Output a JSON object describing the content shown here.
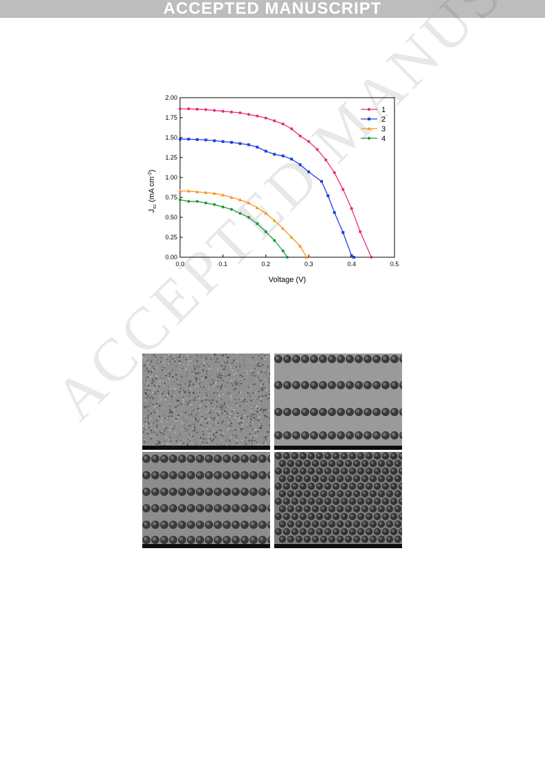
{
  "banner": {
    "text": "ACCEPTED MANUSCRIPT"
  },
  "watermark": {
    "text": "ACCEPTED MANUSCRIPT"
  },
  "chart_data": {
    "type": "line",
    "xlabel": "Voltage (V)",
    "ylabel_main": "J",
    "ylabel_sub": "sc",
    "ylabel_rest": " (mA cm",
    "ylabel_sup": "-2",
    "ylabel_close": ")",
    "xlim": [
      0,
      0.5
    ],
    "ylim": [
      0,
      2.0
    ],
    "xticks": [
      "0.0",
      "0.1",
      "0.2",
      "0.3",
      "0.4",
      "0.5"
    ],
    "yticks": [
      "0.00",
      "0.25",
      "0.50",
      "0.75",
      "1.00",
      "1.25",
      "1.50",
      "1.75",
      "2.00"
    ],
    "legend_position": "top-right",
    "series": [
      {
        "name": "1",
        "color": "#e8287c",
        "marker": "circle",
        "x": [
          0,
          0.02,
          0.04,
          0.06,
          0.08,
          0.1,
          0.12,
          0.14,
          0.16,
          0.18,
          0.2,
          0.22,
          0.24,
          0.26,
          0.28,
          0.3,
          0.32,
          0.34,
          0.36,
          0.38,
          0.4,
          0.42,
          0.446
        ],
        "y": [
          1.86,
          1.86,
          1.855,
          1.85,
          1.84,
          1.83,
          1.82,
          1.81,
          1.79,
          1.77,
          1.745,
          1.71,
          1.67,
          1.61,
          1.52,
          1.45,
          1.35,
          1.22,
          1.06,
          0.85,
          0.61,
          0.32,
          0.0
        ]
      },
      {
        "name": "2",
        "color": "#1f3fe0",
        "marker": "square",
        "x": [
          0,
          0.02,
          0.04,
          0.06,
          0.08,
          0.1,
          0.12,
          0.14,
          0.16,
          0.18,
          0.2,
          0.22,
          0.24,
          0.26,
          0.28,
          0.3,
          0.33,
          0.345,
          0.36,
          0.38,
          0.4,
          0.405
        ],
        "y": [
          1.48,
          1.48,
          1.475,
          1.47,
          1.46,
          1.45,
          1.44,
          1.425,
          1.41,
          1.38,
          1.33,
          1.29,
          1.27,
          1.23,
          1.16,
          1.07,
          0.95,
          0.77,
          0.56,
          0.31,
          0.02,
          0.0
        ]
      },
      {
        "name": "3",
        "color": "#f7941d",
        "marker": "triangle",
        "x": [
          0,
          0.02,
          0.04,
          0.06,
          0.08,
          0.1,
          0.12,
          0.14,
          0.16,
          0.18,
          0.2,
          0.22,
          0.24,
          0.26,
          0.28,
          0.295
        ],
        "y": [
          0.83,
          0.83,
          0.82,
          0.81,
          0.8,
          0.78,
          0.75,
          0.72,
          0.68,
          0.62,
          0.55,
          0.46,
          0.36,
          0.25,
          0.14,
          0.0
        ]
      },
      {
        "name": "4",
        "color": "#1e9a3a",
        "marker": "circle",
        "x": [
          0,
          0.02,
          0.04,
          0.06,
          0.08,
          0.1,
          0.12,
          0.14,
          0.16,
          0.18,
          0.2,
          0.22,
          0.24,
          0.25
        ],
        "y": [
          0.72,
          0.7,
          0.7,
          0.68,
          0.66,
          0.63,
          0.6,
          0.55,
          0.5,
          0.42,
          0.32,
          0.21,
          0.08,
          0.0
        ]
      }
    ]
  },
  "sem_panels": [
    {
      "pattern": "rough"
    },
    {
      "pattern": "two-rows"
    },
    {
      "pattern": "three-rows"
    },
    {
      "pattern": "close-packed"
    }
  ]
}
